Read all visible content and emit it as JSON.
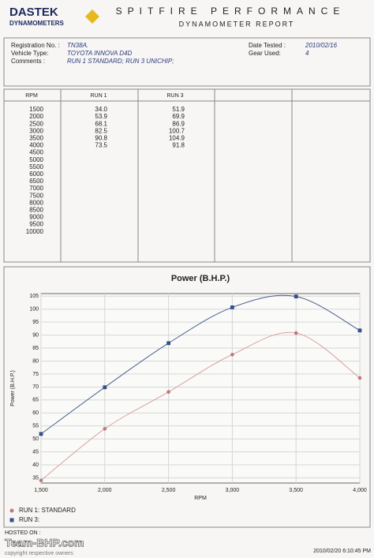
{
  "header": {
    "logo_top": "DASTEK",
    "logo_bottom": "DYNAMOMETERS",
    "title": "SPITFIRE PERFORMANCE",
    "subtitle": "DYNAMOMETER REPORT"
  },
  "info": {
    "left": [
      {
        "label": "Registration No. :",
        "value": "TN38A."
      },
      {
        "label": "Vehicle Type:",
        "value": "TOYOTA INNOVA D4D"
      },
      {
        "label": "Comments :",
        "value": "RUN 1 STANDARD; RUN 3 UNICHIP;"
      }
    ],
    "right": [
      {
        "label": "Date Tested :",
        "value": "2010/02/16"
      },
      {
        "label": "Gear Used:",
        "value": "4"
      }
    ]
  },
  "table": {
    "columns": [
      "RPM",
      "RUN 1",
      "RUN 3"
    ],
    "rows": [
      [
        "1500",
        "34.0",
        "51.9"
      ],
      [
        "2000",
        "53.9",
        "69.9"
      ],
      [
        "2500",
        "68.1",
        "86.9"
      ],
      [
        "3000",
        "82.5",
        "100.7"
      ],
      [
        "3500",
        "90.8",
        "104.9"
      ],
      [
        "4000",
        "73.5",
        "91.8"
      ],
      [
        "4500"
      ],
      [
        "5000"
      ],
      [
        "5500"
      ],
      [
        "6000"
      ],
      [
        "6500"
      ],
      [
        "7000"
      ],
      [
        "7500"
      ],
      [
        "8000"
      ],
      [
        "8500"
      ],
      [
        "9000"
      ],
      [
        "9500"
      ],
      [
        "10000"
      ]
    ]
  },
  "chart_data": {
    "type": "line",
    "title": "Power (B.H.P.)",
    "x_label": "RPM",
    "y_label": "Power (B.H.P.)",
    "x": [
      1500,
      2000,
      2500,
      3000,
      3500,
      4000
    ],
    "series": [
      {
        "name": "RUN 1: STANDARD",
        "color": "#c07878",
        "line_color": "#d8a0a0",
        "values": [
          34.0,
          53.9,
          68.1,
          82.5,
          90.8,
          73.5
        ]
      },
      {
        "name": "RUN 3:",
        "color": "#34508a",
        "line_color": "#4a5f8e",
        "values": [
          51.9,
          69.9,
          86.9,
          100.7,
          104.9,
          91.8
        ]
      }
    ],
    "xlim": [
      1500,
      4000
    ],
    "xticks": [
      {
        "value": 1500,
        "label": "1,500"
      },
      {
        "value": 2000,
        "label": "2,000"
      },
      {
        "value": 2500,
        "label": "2,500"
      },
      {
        "value": 3000,
        "label": "3,000"
      },
      {
        "value": 3500,
        "label": "3,500"
      },
      {
        "value": 4000,
        "label": "4,000"
      }
    ],
    "ylim": [
      33,
      106
    ],
    "yticks": [
      35,
      40,
      45,
      50,
      55,
      60,
      65,
      70,
      75,
      80,
      85,
      90,
      95,
      100,
      105
    ],
    "grid": true
  },
  "footer": {
    "hosted": "HOSTED ON :",
    "site": "Team-BHP.com",
    "copyright": "copyright respective owners",
    "printed": "2010/02/20 6:10:45 PM"
  }
}
